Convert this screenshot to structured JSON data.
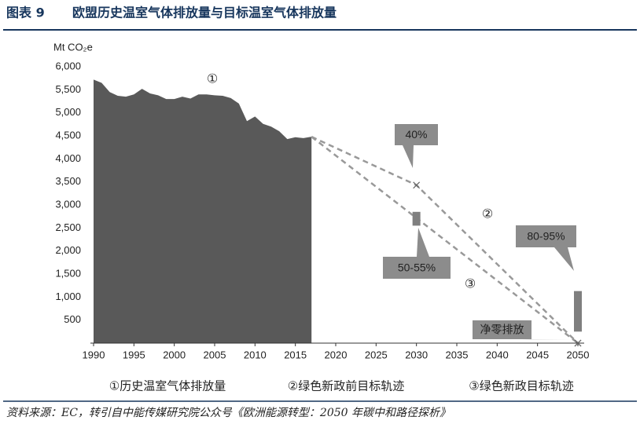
{
  "chart_data": {
    "type": "area",
    "title_label": "图表 9",
    "title": "欧盟历史温室气体排放量与目标温室气体排放量",
    "y_label": "Mt CO₂e",
    "source": "资料来源：EC，转引自中能传媒研究院公众号《欧洲能源转型：2050 年碳中和路径探析》",
    "xlim": [
      1990,
      2050
    ],
    "xticks": [
      1990,
      1995,
      2000,
      2005,
      2010,
      2015,
      2020,
      2025,
      2030,
      2035,
      2040,
      2045,
      2050
    ],
    "ylim": [
      0,
      6000
    ],
    "yticks": [
      {
        "value": 500,
        "label": "500"
      },
      {
        "value": 1000,
        "label": "1,000"
      },
      {
        "value": 1500,
        "label": "1,500"
      },
      {
        "value": 2000,
        "label": "2,000"
      },
      {
        "value": 2500,
        "label": "2,500"
      },
      {
        "value": 3000,
        "label": "3,000"
      },
      {
        "value": 3500,
        "label": "3,500"
      },
      {
        "value": 4000,
        "label": "4,000"
      },
      {
        "value": 4500,
        "label": "4,500"
      },
      {
        "value": 5000,
        "label": "5,000"
      },
      {
        "value": 5500,
        "label": "5,500"
      },
      {
        "value": 6000,
        "label": "6,000"
      }
    ],
    "grid": false,
    "series": [
      {
        "name": "①历史温室气体排放量",
        "color": "#595959",
        "style": "area",
        "x": [
          1990,
          1991,
          1992,
          1993,
          1994,
          1995,
          1996,
          1997,
          1998,
          1999,
          2000,
          2001,
          2002,
          2003,
          2004,
          2005,
          2006,
          2007,
          2008,
          2009,
          2010,
          2011,
          2012,
          2013,
          2014,
          2015,
          2016,
          2017
        ],
        "values": [
          5720,
          5650,
          5450,
          5370,
          5350,
          5400,
          5520,
          5420,
          5380,
          5300,
          5300,
          5350,
          5310,
          5400,
          5400,
          5380,
          5370,
          5320,
          5200,
          4820,
          4920,
          4760,
          4700,
          4600,
          4430,
          4470,
          4450,
          4480
        ]
      },
      {
        "name": "②绿色新政前目标轨迹",
        "color": "#999999",
        "style": "dashed",
        "x": [
          2017,
          2030,
          2050
        ],
        "values": [
          4480,
          3430,
          0
        ]
      },
      {
        "name": "③绿色新政目标轨迹",
        "color": "#999999",
        "style": "dashed",
        "x": [
          2017,
          2050
        ],
        "values": [
          4480,
          0
        ]
      }
    ],
    "ranges": [
      {
        "x": 2030,
        "low": 2550,
        "high": 2850,
        "color": "#7f7f7f"
      },
      {
        "x": 2050,
        "low": 250,
        "high": 1130,
        "color": "#7f7f7f"
      }
    ],
    "annotations": [
      {
        "text": "①"
      },
      {
        "text": "②"
      },
      {
        "text": "③"
      },
      {
        "text": "40%"
      },
      {
        "text": "50-55%"
      },
      {
        "text": "80-95%"
      },
      {
        "text": "净零排放"
      }
    ]
  }
}
